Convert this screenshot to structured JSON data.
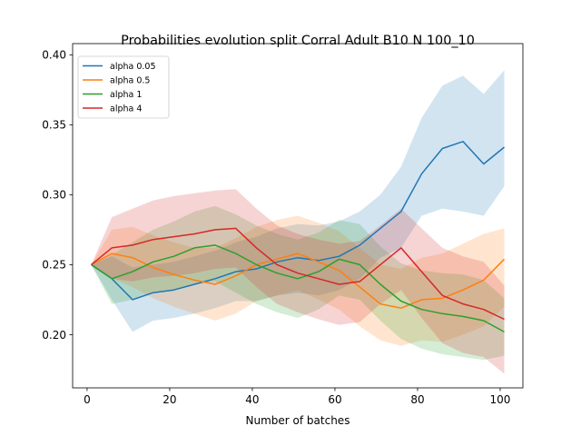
{
  "chart_data": {
    "type": "line",
    "title": "Probabilities evolution split Corral Adult B10 N 100_10",
    "xlabel": "Number of batches",
    "ylabel": "",
    "xlim": [
      -3.5,
      105.5
    ],
    "ylim": [
      0.162,
      0.408
    ],
    "xticks": [
      0,
      20,
      40,
      60,
      80,
      100
    ],
    "xtick_labels": [
      "0",
      "20",
      "40",
      "60",
      "80",
      "100"
    ],
    "yticks": [
      0.2,
      0.25,
      0.3,
      0.35,
      0.4
    ],
    "ytick_labels": [
      "0.20",
      "0.25",
      "0.30",
      "0.35",
      "0.40"
    ],
    "grid": false,
    "legend_position": "top-left",
    "x": [
      1,
      6,
      11,
      16,
      21,
      26,
      31,
      36,
      41,
      46,
      51,
      56,
      61,
      66,
      71,
      76,
      81,
      86,
      91,
      96,
      101
    ],
    "series": [
      {
        "name": "alpha 0.05",
        "color": "#1f77b4",
        "mean": [
          0.25,
          0.24,
          0.225,
          0.23,
          0.232,
          0.236,
          0.24,
          0.245,
          0.247,
          0.252,
          0.255,
          0.253,
          0.256,
          0.264,
          0.276,
          0.288,
          0.315,
          0.333,
          0.338,
          0.322,
          0.334
        ],
        "lower": [
          0.25,
          0.225,
          0.202,
          0.21,
          0.212,
          0.215,
          0.219,
          0.224,
          0.224,
          0.228,
          0.23,
          0.228,
          0.232,
          0.24,
          0.255,
          0.262,
          0.285,
          0.29,
          0.288,
          0.285,
          0.306
        ],
        "upper": [
          0.25,
          0.256,
          0.248,
          0.25,
          0.252,
          0.256,
          0.26,
          0.266,
          0.27,
          0.276,
          0.279,
          0.278,
          0.281,
          0.288,
          0.3,
          0.32,
          0.355,
          0.378,
          0.385,
          0.372,
          0.389
        ]
      },
      {
        "name": "alpha 0.5",
        "color": "#ff7f0e",
        "mean": [
          0.25,
          0.258,
          0.255,
          0.248,
          0.243,
          0.239,
          0.236,
          0.242,
          0.25,
          0.254,
          0.258,
          0.252,
          0.246,
          0.234,
          0.222,
          0.219,
          0.225,
          0.226,
          0.232,
          0.239,
          0.254
        ],
        "lower": [
          0.25,
          0.24,
          0.234,
          0.226,
          0.22,
          0.215,
          0.21,
          0.215,
          0.224,
          0.228,
          0.232,
          0.225,
          0.218,
          0.206,
          0.196,
          0.192,
          0.196,
          0.195,
          0.2,
          0.206,
          0.22
        ],
        "upper": [
          0.25,
          0.275,
          0.277,
          0.271,
          0.266,
          0.262,
          0.262,
          0.269,
          0.277,
          0.282,
          0.285,
          0.28,
          0.274,
          0.262,
          0.25,
          0.247,
          0.255,
          0.258,
          0.265,
          0.272,
          0.276
        ]
      },
      {
        "name": "alpha 1",
        "color": "#2ca02c",
        "mean": [
          0.25,
          0.24,
          0.245,
          0.252,
          0.256,
          0.262,
          0.264,
          0.258,
          0.25,
          0.244,
          0.24,
          0.245,
          0.254,
          0.25,
          0.236,
          0.224,
          0.218,
          0.215,
          0.213,
          0.21,
          0.202
        ],
        "lower": [
          0.25,
          0.222,
          0.225,
          0.23,
          0.232,
          0.236,
          0.238,
          0.23,
          0.222,
          0.216,
          0.212,
          0.218,
          0.228,
          0.225,
          0.21,
          0.197,
          0.19,
          0.186,
          0.184,
          0.182,
          0.185
        ],
        "upper": [
          0.25,
          0.257,
          0.266,
          0.275,
          0.281,
          0.288,
          0.292,
          0.286,
          0.278,
          0.272,
          0.268,
          0.273,
          0.282,
          0.279,
          0.263,
          0.251,
          0.246,
          0.244,
          0.243,
          0.239,
          0.226
        ]
      },
      {
        "name": "alpha 4",
        "color": "#d62728",
        "mean": [
          0.25,
          0.262,
          0.264,
          0.268,
          0.27,
          0.272,
          0.275,
          0.276,
          0.262,
          0.25,
          0.244,
          0.24,
          0.236,
          0.238,
          0.25,
          0.262,
          0.245,
          0.228,
          0.222,
          0.218,
          0.211
        ],
        "lower": [
          0.25,
          0.24,
          0.238,
          0.241,
          0.242,
          0.244,
          0.247,
          0.248,
          0.234,
          0.222,
          0.216,
          0.211,
          0.207,
          0.209,
          0.222,
          0.232,
          0.212,
          0.194,
          0.187,
          0.184,
          0.172
        ],
        "upper": [
          0.25,
          0.284,
          0.29,
          0.296,
          0.299,
          0.301,
          0.303,
          0.304,
          0.29,
          0.278,
          0.272,
          0.268,
          0.265,
          0.267,
          0.278,
          0.29,
          0.276,
          0.262,
          0.256,
          0.252,
          0.235
        ]
      }
    ]
  }
}
